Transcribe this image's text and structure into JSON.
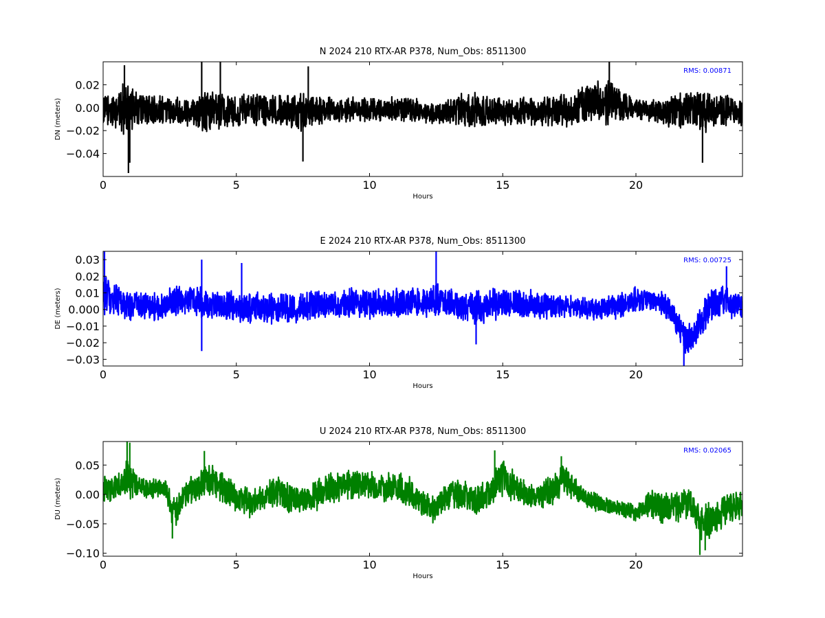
{
  "page_colors": {
    "background": "#ffffff"
  },
  "chart_data": [
    {
      "type": "line",
      "title": "N 2024 210 RTX-AR  P378, Num_Obs: 8511300",
      "xlabel": "Hours",
      "ylabel": "DN (meters)",
      "xlim": [
        0,
        24
      ],
      "ylim": [
        -0.06,
        0.04
      ],
      "xticks": [
        0,
        5,
        10,
        15,
        20
      ],
      "yticks": [
        0.02,
        0.0,
        -0.02,
        -0.04
      ],
      "ytick_labels": [
        "0.02",
        "0.00",
        "−0.02",
        "−0.04"
      ],
      "grid": false,
      "color": "#000000",
      "rms_text": "RMS:  0.00871",
      "rms_color": "#0000ff",
      "series": [
        {
          "x": [
            0,
            0.5,
            0.8,
            0.9,
            1.0,
            1.3,
            1.7,
            2.0,
            2.4,
            2.5,
            3.0,
            3.5,
            3.7,
            4.0,
            4.4,
            4.5,
            5.0,
            5.5,
            6.0,
            6.5,
            7.0,
            7.5,
            7.7,
            8.0,
            9.0,
            10.0,
            11.0,
            11.5,
            12.0,
            12.5,
            13.0,
            13.5,
            14.0,
            15.0,
            15.5,
            16.0,
            16.5,
            17.0,
            17.5,
            18.0,
            18.5,
            19.0,
            19.5,
            20.0,
            20.5,
            21.0,
            21.5,
            22.0,
            22.5,
            23.0,
            23.5,
            24.0
          ],
          "mean": [
            -0.003,
            -0.002,
            0.0,
            0.001,
            -0.002,
            -0.001,
            -0.002,
            -0.002,
            -0.002,
            -0.002,
            -0.003,
            -0.002,
            -0.003,
            -0.003,
            -0.002,
            -0.003,
            -0.002,
            -0.002,
            -0.003,
            -0.003,
            -0.003,
            -0.004,
            -0.003,
            -0.003,
            -0.002,
            -0.002,
            -0.002,
            -0.002,
            -0.004,
            -0.005,
            -0.003,
            -0.002,
            -0.003,
            -0.004,
            -0.003,
            -0.002,
            -0.004,
            -0.003,
            -0.002,
            0.003,
            0.005,
            0.004,
            0.002,
            -0.001,
            -0.003,
            -0.004,
            -0.003,
            -0.003,
            -0.004,
            -0.003,
            -0.002,
            -0.003
          ],
          "amp": [
            0.014,
            0.017,
            0.026,
            0.03,
            0.021,
            0.017,
            0.016,
            0.015,
            0.016,
            0.013,
            0.014,
            0.015,
            0.02,
            0.018,
            0.022,
            0.018,
            0.016,
            0.015,
            0.016,
            0.015,
            0.017,
            0.02,
            0.016,
            0.014,
            0.012,
            0.012,
            0.012,
            0.013,
            0.012,
            0.011,
            0.013,
            0.016,
            0.017,
            0.013,
            0.013,
            0.014,
            0.016,
            0.016,
            0.016,
            0.018,
            0.02,
            0.021,
            0.016,
            0.01,
            0.01,
            0.013,
            0.017,
            0.018,
            0.021,
            0.016,
            0.014,
            0.014
          ],
          "spikes": [
            [
              0.95,
              -0.057
            ],
            [
              0.8,
              0.037
            ],
            [
              3.7,
              0.04
            ],
            [
              4.4,
              0.04
            ],
            [
              7.5,
              -0.047
            ],
            [
              7.7,
              0.036
            ],
            [
              19.0,
              0.04
            ],
            [
              22.5,
              -0.048
            ],
            [
              1.0,
              -0.048
            ]
          ]
        }
      ]
    },
    {
      "type": "line",
      "title": "E 2024 210 RTX-AR  P378, Num_Obs: 8511300",
      "xlabel": "Hours",
      "ylabel": "DE (meters)",
      "xlim": [
        0,
        24
      ],
      "ylim": [
        -0.034,
        0.035
      ],
      "xticks": [
        0,
        5,
        10,
        15,
        20
      ],
      "yticks": [
        0.03,
        0.02,
        0.01,
        0.0,
        -0.01,
        -0.02,
        -0.03
      ],
      "ytick_labels": [
        "0.03",
        "0.02",
        "0.01",
        "0.000",
        "−0.01",
        "−0.02",
        "−0.03"
      ],
      "grid": false,
      "color": "#0000ff",
      "rms_text": "RMS:  0.00725",
      "rms_color": "#0000ff",
      "series": [
        {
          "x": [
            0,
            0.3,
            0.7,
            1.0,
            1.5,
            2.0,
            2.4,
            2.5,
            3.0,
            3.5,
            4.0,
            4.5,
            5.0,
            5.5,
            6.0,
            6.5,
            7.0,
            8.0,
            9.0,
            10.0,
            11.0,
            12.0,
            12.5,
            13.0,
            13.5,
            14.0,
            15.0,
            16.0,
            17.0,
            18.0,
            18.5,
            19.0,
            19.5,
            20.0,
            20.5,
            21.0,
            21.3,
            21.6,
            21.8,
            22.0,
            22.3,
            22.6,
            23.0,
            23.5,
            24.0
          ],
          "mean": [
            0.008,
            0.006,
            0.004,
            0.003,
            0.002,
            0.001,
            0.002,
            0.005,
            0.006,
            0.005,
            0.003,
            0.003,
            0.002,
            0.001,
            0.001,
            0.001,
            0.001,
            0.002,
            0.003,
            0.004,
            0.004,
            0.004,
            0.006,
            0.004,
            0.002,
            0.001,
            0.004,
            0.003,
            0.002,
            0.001,
            0.0,
            0.001,
            0.003,
            0.006,
            0.006,
            0.004,
            -0.002,
            -0.01,
            -0.016,
            -0.018,
            -0.012,
            -0.002,
            0.004,
            0.004,
            0.002
          ],
          "amp": [
            0.015,
            0.012,
            0.011,
            0.011,
            0.01,
            0.009,
            0.008,
            0.01,
            0.01,
            0.01,
            0.01,
            0.01,
            0.01,
            0.01,
            0.01,
            0.01,
            0.01,
            0.01,
            0.01,
            0.01,
            0.01,
            0.01,
            0.012,
            0.01,
            0.01,
            0.011,
            0.011,
            0.01,
            0.008,
            0.007,
            0.007,
            0.008,
            0.009,
            0.008,
            0.007,
            0.008,
            0.008,
            0.009,
            0.01,
            0.01,
            0.01,
            0.011,
            0.012,
            0.01,
            0.01
          ],
          "spikes": [
            [
              0.05,
              0.035
            ],
            [
              3.7,
              -0.025
            ],
            [
              3.7,
              0.03
            ],
            [
              5.2,
              0.028
            ],
            [
              12.5,
              0.035
            ],
            [
              21.8,
              -0.034
            ],
            [
              23.4,
              0.026
            ],
            [
              14.0,
              -0.021
            ]
          ]
        }
      ]
    },
    {
      "type": "line",
      "title": "U 2024 210 RTX-AR  P378, Num_Obs: 8511300",
      "xlabel": "Hours",
      "ylabel": "DU (meters)",
      "xlim": [
        0,
        24
      ],
      "ylim": [
        -0.105,
        0.09
      ],
      "xticks": [
        0,
        5,
        10,
        15,
        20
      ],
      "yticks": [
        0.05,
        0.0,
        -0.05,
        -0.1
      ],
      "ytick_labels": [
        "0.05",
        "0.00",
        "−0.05",
        "−0.10"
      ],
      "grid": false,
      "color": "#008000",
      "rms_text": "RMS:  0.02065",
      "rms_color": "#0000ff",
      "series": [
        {
          "x": [
            0,
            0.3,
            0.7,
            0.9,
            1.0,
            1.3,
            1.7,
            2.0,
            2.4,
            2.6,
            2.8,
            3.0,
            3.5,
            4.0,
            4.5,
            5.0,
            5.5,
            6.0,
            6.5,
            7.0,
            7.5,
            8.0,
            8.5,
            9.0,
            9.5,
            10.0,
            10.5,
            11.0,
            11.5,
            12.0,
            12.5,
            13.0,
            13.5,
            14.0,
            14.5,
            15.0,
            15.5,
            16.0,
            16.5,
            17.0,
            17.3,
            17.7,
            18.0,
            18.5,
            19.0,
            19.5,
            20.0,
            20.5,
            21.0,
            21.5,
            22.0,
            22.5,
            23.0,
            23.5,
            24.0
          ],
          "mean": [
            0.005,
            0.01,
            0.02,
            0.035,
            0.025,
            0.015,
            0.008,
            0.012,
            0.008,
            -0.03,
            -0.02,
            -0.005,
            0.01,
            0.025,
            0.012,
            -0.005,
            -0.015,
            -0.005,
            0.005,
            -0.01,
            -0.008,
            0.0,
            0.008,
            0.015,
            0.018,
            0.015,
            0.01,
            0.012,
            0.005,
            -0.02,
            -0.025,
            0.0,
            0.0,
            -0.01,
            0.005,
            0.03,
            0.01,
            -0.005,
            0.0,
            0.01,
            0.03,
            0.01,
            -0.005,
            -0.012,
            -0.02,
            -0.025,
            -0.03,
            -0.015,
            -0.025,
            -0.02,
            -0.015,
            -0.05,
            -0.04,
            -0.02,
            -0.02
          ],
          "amp": [
            0.03,
            0.025,
            0.025,
            0.04,
            0.035,
            0.02,
            0.018,
            0.018,
            0.02,
            0.03,
            0.03,
            0.025,
            0.03,
            0.03,
            0.03,
            0.028,
            0.028,
            0.025,
            0.03,
            0.03,
            0.025,
            0.03,
            0.03,
            0.03,
            0.028,
            0.025,
            0.025,
            0.03,
            0.03,
            0.028,
            0.025,
            0.025,
            0.028,
            0.03,
            0.03,
            0.035,
            0.03,
            0.028,
            0.028,
            0.03,
            0.03,
            0.025,
            0.018,
            0.018,
            0.016,
            0.015,
            0.02,
            0.025,
            0.028,
            0.03,
            0.03,
            0.035,
            0.035,
            0.03,
            0.028
          ],
          "spikes": [
            [
              0.9,
              0.09
            ],
            [
              1.0,
              0.088
            ],
            [
              2.6,
              -0.075
            ],
            [
              3.8,
              0.074
            ],
            [
              14.7,
              0.075
            ],
            [
              17.2,
              0.065
            ],
            [
              22.4,
              -0.103
            ],
            [
              22.6,
              -0.095
            ]
          ]
        }
      ]
    }
  ]
}
